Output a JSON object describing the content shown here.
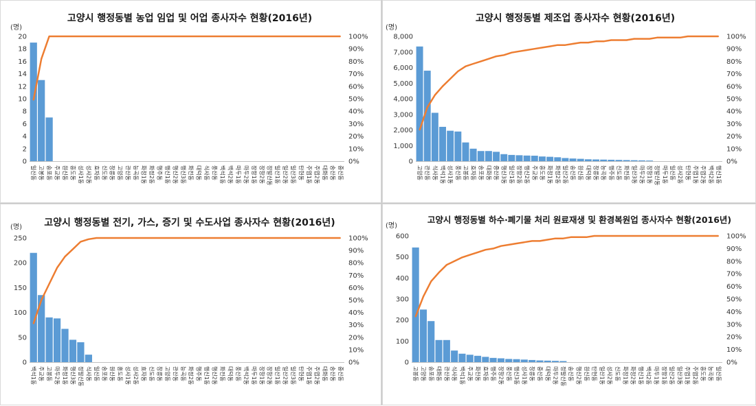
{
  "chart_data": [
    {
      "type": "bar",
      "title": "고양시 행정동별 농업 임업 및 어업 종사자수 현황(2016년)",
      "ylabel": "(명)",
      "ylim": [
        0,
        20
      ],
      "yticks": [
        0,
        2,
        4,
        6,
        8,
        10,
        12,
        14,
        16,
        18,
        20
      ],
      "y2lim": [
        0,
        100
      ],
      "y2ticks": [
        "0%",
        "10%",
        "20%",
        "30%",
        "40%",
        "50%",
        "60%",
        "70%",
        "80%",
        "90%",
        "100%"
      ],
      "categories": [
        "일산동",
        "고봉동",
        "송포동",
        "주교동",
        "원신동",
        "흥도동",
        "성사1동",
        "성사2동",
        "효자동",
        "신도동",
        "창릉동",
        "고양동",
        "관산동",
        "능곡동",
        "화정1동",
        "화정2동",
        "행주동",
        "행신1동",
        "행신2동",
        "행신3동",
        "화전동",
        "대덕동",
        "식사동",
        "풍산동",
        "백석1동",
        "백석2동",
        "마두1동",
        "마두2동",
        "장항1동",
        "장항2동",
        "정발산동",
        "일산1동",
        "일산2동",
        "일산3동",
        "탄현동",
        "주엽1동",
        "주엽2동",
        "대화동",
        "송산동",
        "중산동"
      ],
      "values": [
        19,
        13,
        7,
        0,
        0,
        0,
        0,
        0,
        0,
        0,
        0,
        0,
        0,
        0,
        0,
        0,
        0,
        0,
        0,
        0,
        0,
        0,
        0,
        0,
        0,
        0,
        0,
        0,
        0,
        0,
        0,
        0,
        0,
        0,
        0,
        0,
        0,
        0,
        0,
        0
      ],
      "cumulative_pct": [
        49,
        82,
        100,
        100,
        100,
        100,
        100,
        100,
        100,
        100,
        100,
        100,
        100,
        100,
        100,
        100,
        100,
        100,
        100,
        100,
        100,
        100,
        100,
        100,
        100,
        100,
        100,
        100,
        100,
        100,
        100,
        100,
        100,
        100,
        100,
        100,
        100,
        100,
        100,
        100
      ],
      "bar_color": "#5b9bd5",
      "line_color": "#ed7d31"
    },
    {
      "type": "bar",
      "title": "고양시 행정동별 제조업 종사자수 현황(2016년)",
      "ylabel": "(명)",
      "ylim": [
        0,
        8000
      ],
      "yticks": [
        "0",
        "1,000",
        "2,000",
        "3,000",
        "4,000",
        "5,000",
        "6,000",
        "7,000",
        "8,000"
      ],
      "y2lim": [
        0,
        100
      ],
      "y2ticks": [
        "0%",
        "10%",
        "20%",
        "30%",
        "40%",
        "50%",
        "60%",
        "70%",
        "80%",
        "90%",
        "100%"
      ],
      "categories": [
        "고양동",
        "관산동",
        "식사동",
        "백석1동",
        "성사1동",
        "풍산동",
        "고봉동",
        "효자동",
        "송포동",
        "대화동",
        "중산동",
        "행신3동",
        "일산1동",
        "장항2동",
        "행신2동",
        "주교동",
        "흥도동",
        "화정1동",
        "화정2동",
        "일산2동",
        "송산동",
        "원신동",
        "대덕동",
        "창릉동",
        "능곡동",
        "행주동",
        "신도동",
        "화전동",
        "일산3동",
        "마두2동",
        "장항1동",
        "정발산동",
        "마두1동",
        "일산동",
        "성사2동",
        "탄현동",
        "주엽1동",
        "주엽2동",
        "백석2동",
        "행신1동"
      ],
      "values": [
        7350,
        5800,
        3100,
        2200,
        1950,
        1900,
        1200,
        800,
        650,
        650,
        600,
        450,
        400,
        380,
        360,
        350,
        300,
        280,
        250,
        200,
        170,
        150,
        120,
        110,
        100,
        90,
        80,
        70,
        60,
        50,
        40,
        0,
        0,
        0,
        0,
        0,
        0,
        0,
        0,
        0
      ],
      "cumulative_pct": [
        25,
        43,
        53,
        60,
        66,
        72,
        76,
        78,
        80,
        82,
        84,
        85,
        87,
        88,
        89,
        90,
        91,
        92,
        93,
        93,
        94,
        95,
        95,
        96,
        96,
        97,
        97,
        97,
        98,
        98,
        98,
        99,
        99,
        99,
        99,
        100,
        100,
        100,
        100,
        100
      ],
      "bar_color": "#5b9bd5",
      "line_color": "#ed7d31"
    },
    {
      "type": "bar",
      "title": "고양시 행정동별 전기, 가스, 증기 및 수도사업 종사자수 현황(2016년)",
      "ylabel": "(명)",
      "ylim": [
        0,
        250
      ],
      "yticks": [
        0,
        50,
        100,
        150,
        200,
        250
      ],
      "y2lim": [
        0,
        100
      ],
      "y2ticks": [
        "0%",
        "10%",
        "20%",
        "30%",
        "40%",
        "50%",
        "60%",
        "70%",
        "80%",
        "90%",
        "100%"
      ],
      "categories": [
        "백석1동",
        "주교동",
        "고봉동",
        "마두2동",
        "화정1동",
        "행신3동",
        "정발산동",
        "식사동",
        "일산동",
        "송포동",
        "원신동",
        "흥도동",
        "성사1동",
        "성사2동",
        "효자동",
        "신도동",
        "창릉동",
        "고양동",
        "관산동",
        "능곡동",
        "화정2동",
        "행주동",
        "행신1동",
        "행신2동",
        "화전동",
        "대덕동",
        "풍산동",
        "백석2동",
        "마두1동",
        "장항1동",
        "장항2동",
        "일산1동",
        "일산2동",
        "일산3동",
        "탄현동",
        "주엽1동",
        "주엽2동",
        "대화동",
        "송산동",
        "중산동"
      ],
      "values": [
        220,
        135,
        90,
        88,
        67,
        45,
        40,
        15,
        0,
        0,
        0,
        0,
        0,
        0,
        0,
        0,
        0,
        0,
        0,
        0,
        0,
        0,
        0,
        0,
        0,
        0,
        0,
        0,
        0,
        0,
        0,
        0,
        0,
        0,
        0,
        0,
        0,
        0,
        0,
        0
      ],
      "cumulative_pct": [
        31,
        50,
        63,
        76,
        85,
        91,
        97,
        99,
        100,
        100,
        100,
        100,
        100,
        100,
        100,
        100,
        100,
        100,
        100,
        100,
        100,
        100,
        100,
        100,
        100,
        100,
        100,
        100,
        100,
        100,
        100,
        100,
        100,
        100,
        100,
        100,
        100,
        100,
        100,
        100
      ],
      "bar_color": "#5b9bd5",
      "line_color": "#ed7d31"
    },
    {
      "type": "bar",
      "title": "고양시 행정동별 하수·폐기물 처리 원료재생 및 환경복원업 종사자수 현황(2016년)",
      "ylabel": "(명)",
      "ylim": [
        0,
        600
      ],
      "yticks": [
        0,
        100,
        200,
        300,
        400,
        500,
        600
      ],
      "y2lim": [
        0,
        100
      ],
      "y2ticks": [
        "0%",
        "10%",
        "20%",
        "30%",
        "40%",
        "50%",
        "60%",
        "70%",
        "80%",
        "90%",
        "100%"
      ],
      "categories": [
        "고봉동",
        "고양동",
        "송포동",
        "대화동",
        "관산동",
        "식사동",
        "백석1동",
        "주교동",
        "화전동",
        "효자동",
        "행주동",
        "장항2동",
        "풍산동",
        "행신3동",
        "성사1동",
        "창릉동",
        "중산동",
        "대덕동",
        "마두2동",
        "정발산동",
        "송산동",
        "행신2동",
        "원신동",
        "탄현동",
        "일산1동",
        "성사2동",
        "신도동",
        "화정1동",
        "화정2동",
        "행신1동",
        "백석2동",
        "마두1동",
        "장항1동",
        "일산2동",
        "일산3동",
        "주엽1동",
        "주엽2동",
        "흥도동",
        "능곡동",
        "일산동"
      ],
      "values": [
        545,
        250,
        195,
        105,
        105,
        55,
        40,
        35,
        30,
        25,
        20,
        18,
        15,
        14,
        12,
        10,
        8,
        7,
        6,
        5,
        0,
        0,
        0,
        0,
        0,
        0,
        0,
        0,
        0,
        0,
        0,
        0,
        0,
        0,
        0,
        0,
        0,
        0,
        0,
        0
      ],
      "cumulative_pct": [
        36,
        52,
        64,
        71,
        77,
        80,
        83,
        85,
        87,
        89,
        90,
        92,
        93,
        94,
        95,
        96,
        96,
        97,
        98,
        98,
        99,
        99,
        99,
        100,
        100,
        100,
        100,
        100,
        100,
        100,
        100,
        100,
        100,
        100,
        100,
        100,
        100,
        100,
        100,
        100
      ],
      "bar_color": "#5b9bd5",
      "line_color": "#ed7d31"
    }
  ]
}
